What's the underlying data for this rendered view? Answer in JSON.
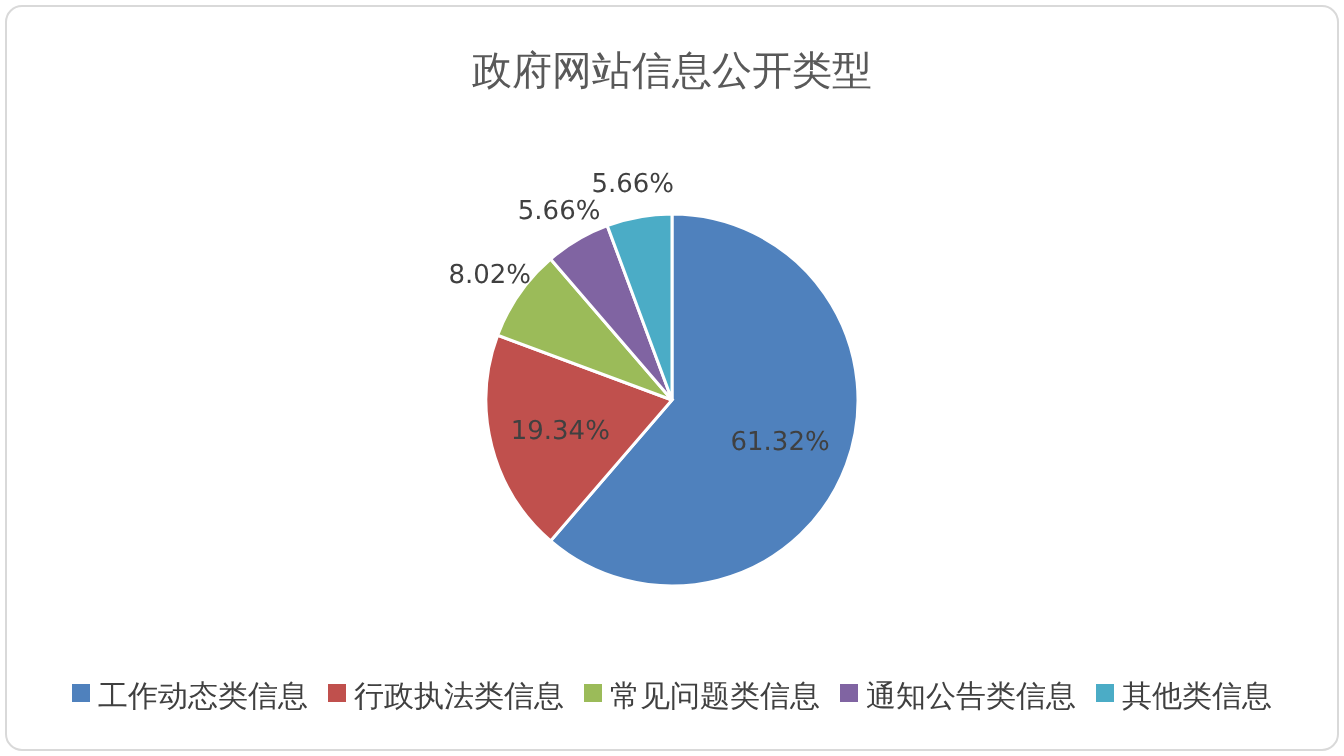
{
  "chart_data": {
    "type": "pie",
    "title": "政府网站信息公开类型",
    "categories": [
      "工作动态类信息",
      "行政执法类信息",
      "常见问题类信息",
      "通知公告类信息",
      "其他类信息"
    ],
    "values": [
      61.32,
      19.34,
      8.02,
      5.66,
      5.66
    ],
    "colors": [
      "#4f81bd",
      "#c0504d",
      "#9bbb59",
      "#8064a2",
      "#4bacc6"
    ],
    "value_labels": [
      "61.32%",
      "19.34%",
      "8.02%",
      "5.66%",
      "5.66%"
    ],
    "legend": "bottom"
  }
}
